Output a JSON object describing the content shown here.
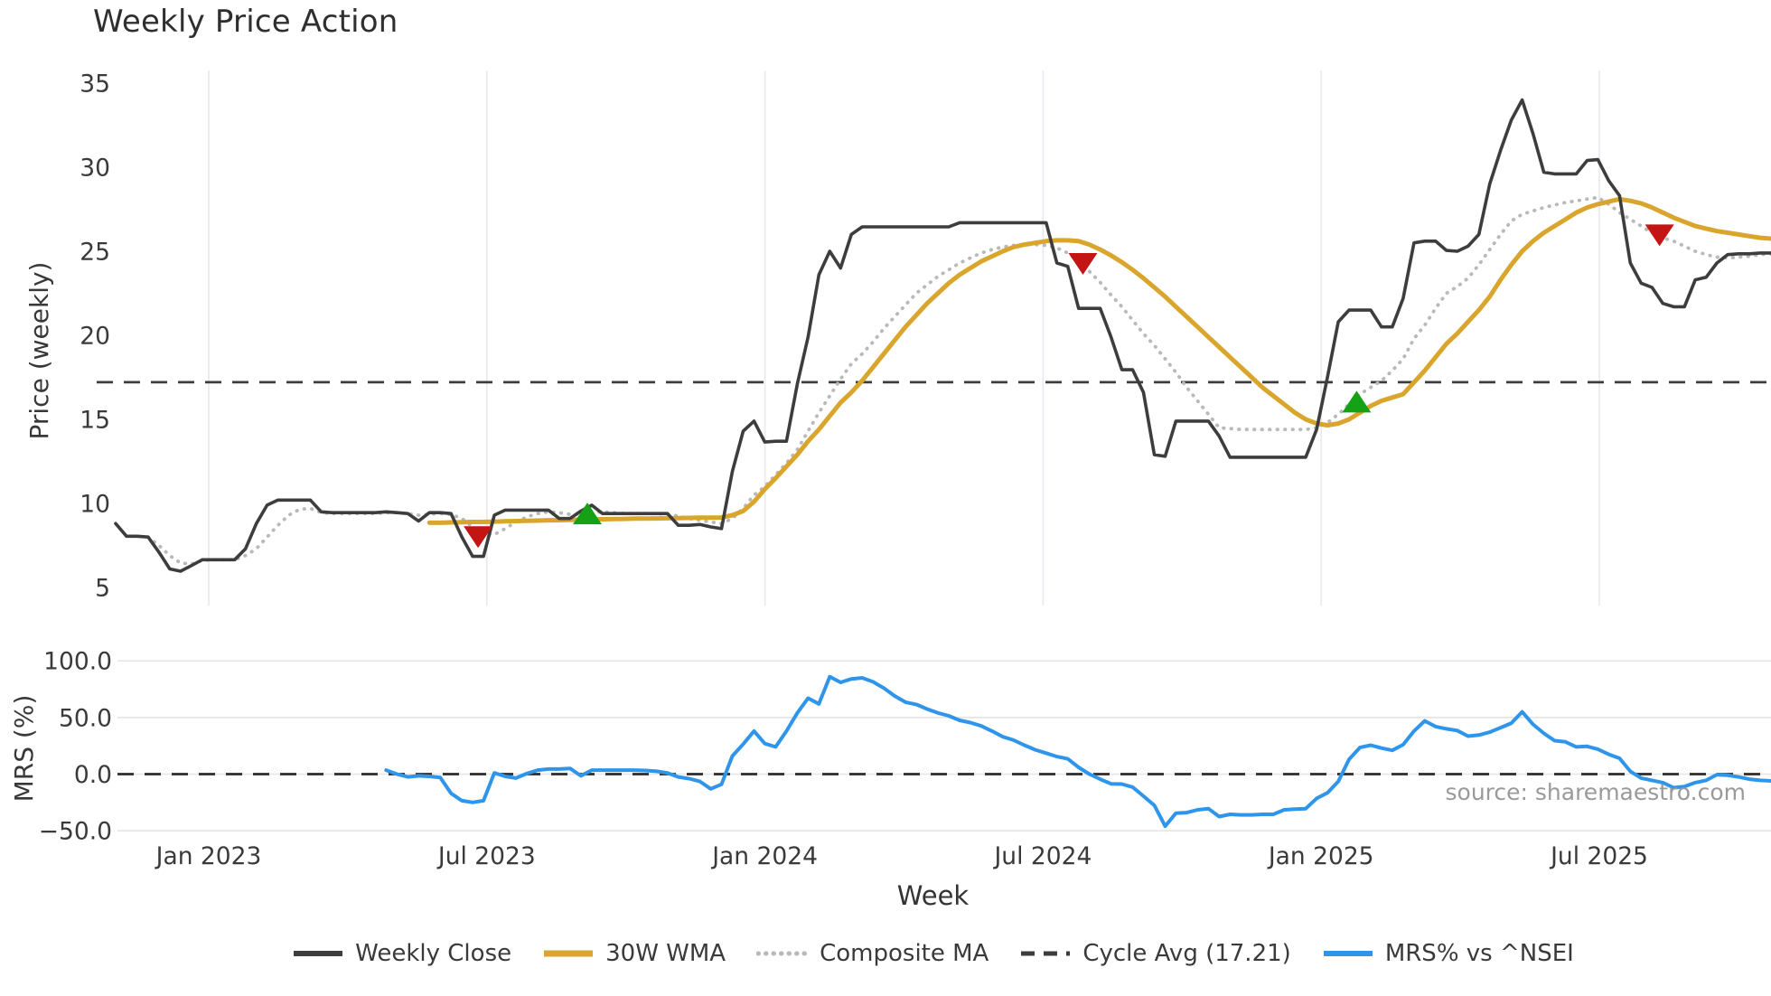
{
  "title": "Weekly Price Action",
  "source_note": "source: sharemaestro.com",
  "x_axis": {
    "label": "Week",
    "ticks": [
      "Jan 2023",
      "Jul 2023",
      "Jan 2024",
      "Jul 2024",
      "Jan 2025",
      "Jul 2025"
    ]
  },
  "colors": {
    "weekly_close": "#3d3d3d",
    "wma_30w": "#d9a52c",
    "composite_ma": "#b9b9b9",
    "cycle_avg": "#3c3c3c",
    "mrs": "#2e95ea",
    "buy_marker": "#15a115",
    "sell_marker": "#c41515",
    "vgrid": "#e9e9f1",
    "hgrid": "#e6e6e6",
    "tick_text": "#3a3a3a"
  },
  "legend": {
    "items": [
      {
        "label": "Weekly Close",
        "color": "#3d3d3d",
        "style": "solid",
        "width": 6
      },
      {
        "label": "30W WMA",
        "color": "#d9a52c",
        "style": "solid",
        "width": 7
      },
      {
        "label": "Composite MA",
        "color": "#b9b9b9",
        "style": "dotted",
        "width": 5
      },
      {
        "label": "Cycle Avg (17.21)",
        "color": "#3c3c3c",
        "style": "dashed",
        "width": 5
      },
      {
        "label": "MRS% vs ^NSEI",
        "color": "#2e95ea",
        "style": "solid",
        "width": 6
      }
    ]
  },
  "chart_data": [
    {
      "type": "line",
      "panel": "price",
      "title": "Weekly Price Action",
      "ylabel": "Price (weekly)",
      "yticks": [
        35,
        30,
        25,
        20,
        15,
        10,
        5
      ],
      "ylim": [
        4.2,
        35.8
      ],
      "grid": "vertical-only",
      "cycle_avg_value": 17.21,
      "series": [
        {
          "name": "Weekly Close",
          "style": "solid",
          "color": "#3d3d3d",
          "start_week": 0,
          "values": [
            8.8,
            8.05,
            8.05,
            8.0,
            7.1,
            6.1,
            5.97,
            6.3,
            6.65,
            6.65,
            6.65,
            6.65,
            7.3,
            8.8,
            9.9,
            10.2,
            10.2,
            10.2,
            10.2,
            9.5,
            9.45,
            9.45,
            9.45,
            9.45,
            9.45,
            9.5,
            9.45,
            9.4,
            8.95,
            9.45,
            9.45,
            9.4,
            8.0,
            6.85,
            6.85,
            9.3,
            9.6,
            9.6,
            9.6,
            9.6,
            9.6,
            9.1,
            9.1,
            9.55,
            9.9,
            9.4,
            9.4,
            9.4,
            9.4,
            9.4,
            9.4,
            9.4,
            8.7,
            8.7,
            8.75,
            8.6,
            8.5,
            11.9,
            14.3,
            14.9,
            13.65,
            13.7,
            13.7,
            17.1,
            19.9,
            23.6,
            25.0,
            24.0,
            26.0,
            26.45,
            26.45,
            26.45,
            26.45,
            26.45,
            26.45,
            26.45,
            26.45,
            26.45,
            26.7,
            26.7,
            26.7,
            26.7,
            26.7,
            26.7,
            26.7,
            26.7,
            26.7,
            24.3,
            24.1,
            21.6,
            21.6,
            21.6,
            19.9,
            17.95,
            17.95,
            16.6,
            12.9,
            12.8,
            14.9,
            14.9,
            14.9,
            14.9,
            14.0,
            12.75,
            12.75,
            12.75,
            12.75,
            12.75,
            12.75,
            12.75,
            12.75,
            14.4,
            17.5,
            20.8,
            21.5,
            21.5,
            21.5,
            20.5,
            20.5,
            22.2,
            25.5,
            25.6,
            25.6,
            25.05,
            25.0,
            25.3,
            26.0,
            29.0,
            31.0,
            32.8,
            34.0,
            32.0,
            29.7,
            29.6,
            29.6,
            29.6,
            30.4,
            30.45,
            29.2,
            28.3,
            24.3,
            23.1,
            22.85,
            21.9,
            21.7,
            21.7,
            23.3,
            23.45,
            24.3,
            24.8,
            24.85,
            24.85,
            24.9,
            24.9
          ]
        },
        {
          "name": "30W WMA",
          "style": "solid",
          "color": "#d9a52c",
          "start_week": 29,
          "values": [
            8.85,
            8.85,
            8.87,
            8.88,
            8.9,
            8.9,
            8.92,
            8.94,
            8.95,
            8.97,
            8.98,
            9.0,
            9.0,
            9.02,
            9.03,
            9.05,
            9.06,
            9.07,
            9.08,
            9.1,
            9.1,
            9.11,
            9.12,
            9.13,
            9.14,
            9.15,
            9.15,
            9.16,
            9.3,
            9.55,
            10.1,
            10.85,
            11.5,
            12.2,
            12.9,
            13.7,
            14.4,
            15.2,
            16.0,
            16.6,
            17.3,
            18.1,
            18.9,
            19.7,
            20.5,
            21.2,
            21.9,
            22.5,
            23.1,
            23.6,
            24.0,
            24.4,
            24.7,
            25.0,
            25.25,
            25.4,
            25.5,
            25.6,
            25.65,
            25.65,
            25.6,
            25.4,
            25.1,
            24.75,
            24.35,
            23.9,
            23.4,
            22.85,
            22.3,
            21.7,
            21.1,
            20.5,
            19.9,
            19.3,
            18.7,
            18.1,
            17.5,
            16.9,
            16.4,
            15.9,
            15.4,
            15.0,
            14.75,
            14.65,
            14.75,
            15.0,
            15.4,
            15.8,
            16.1,
            16.3,
            16.5,
            17.2,
            17.9,
            18.7,
            19.5,
            20.1,
            20.8,
            21.5,
            22.3,
            23.3,
            24.2,
            25.0,
            25.6,
            26.1,
            26.5,
            26.9,
            27.3,
            27.6,
            27.8,
            27.95,
            28.1,
            28.0,
            27.85,
            27.6,
            27.3,
            27.0,
            26.75,
            26.5,
            26.35,
            26.2,
            26.1,
            26.0,
            25.9,
            25.8,
            25.75
          ]
        },
        {
          "name": "Composite MA",
          "style": "dotted",
          "color": "#b9b9b9",
          "start_week": 3,
          "values": [
            8.0,
            7.5,
            6.9,
            6.45,
            6.4,
            6.6,
            6.65,
            6.65,
            6.65,
            6.9,
            7.3,
            8.0,
            8.7,
            9.3,
            9.65,
            9.7,
            9.45,
            9.4,
            9.4,
            9.4,
            9.4,
            9.4,
            9.45,
            9.45,
            9.4,
            9.3,
            9.35,
            9.4,
            9.35,
            9.1,
            8.6,
            8.2,
            8.15,
            8.5,
            8.9,
            9.2,
            9.4,
            9.5,
            9.45,
            9.35,
            9.35,
            9.45,
            9.5,
            9.45,
            9.4,
            9.4,
            9.4,
            9.4,
            9.35,
            9.25,
            9.1,
            9.0,
            8.9,
            8.8,
            9.1,
            9.7,
            10.5,
            11.0,
            11.7,
            12.4,
            13.2,
            14.3,
            15.4,
            16.4,
            17.4,
            18.3,
            18.9,
            19.6,
            20.4,
            21.1,
            21.8,
            22.5,
            23.0,
            23.5,
            23.9,
            24.3,
            24.6,
            24.9,
            25.1,
            25.25,
            25.35,
            25.4,
            25.4,
            25.35,
            25.2,
            24.9,
            24.4,
            23.8,
            23.15,
            22.4,
            21.7,
            20.9,
            20.1,
            19.4,
            18.6,
            17.8,
            16.9,
            16.1,
            15.3,
            14.5,
            14.45,
            14.4,
            14.4,
            14.4,
            14.4,
            14.4,
            14.4,
            14.4,
            14.5,
            14.8,
            15.3,
            15.9,
            16.5,
            16.9,
            17.3,
            17.9,
            18.6,
            19.8,
            20.6,
            21.6,
            22.5,
            22.9,
            23.4,
            24.2,
            25.1,
            26.0,
            26.8,
            27.2,
            27.4,
            27.6,
            27.75,
            27.9,
            28.0,
            28.1,
            28.2,
            27.8,
            27.3,
            26.9,
            26.5,
            26.1,
            25.8,
            25.6,
            25.3,
            25.0,
            24.8,
            24.65,
            24.6,
            24.65,
            24.7,
            24.8,
            24.85
          ]
        }
      ],
      "markers": {
        "buy": [
          {
            "week": 43.6,
            "price": 9.35
          },
          {
            "week": 114.7,
            "price": 16.0
          }
        ],
        "sell": [
          {
            "week": 33.5,
            "price": 8.05
          },
          {
            "week": 89.4,
            "price": 24.3
          },
          {
            "week": 142.7,
            "price": 26.0
          }
        ]
      }
    },
    {
      "type": "line",
      "panel": "mrs",
      "ylabel": "MRS (%)",
      "yticks": [
        100,
        50,
        0,
        -50
      ],
      "ylim": [
        -60,
        110
      ],
      "grid": "horizontal-only",
      "zero_line": 0,
      "series": [
        {
          "name": "MRS% vs ^NSEI",
          "style": "solid",
          "color": "#2e95ea",
          "start_week": 25,
          "values": [
            3.5,
            0,
            -2.5,
            -1.5,
            -2,
            -3,
            -17,
            -23.5,
            -25,
            -23.5,
            1,
            -2,
            -3.5,
            0.5,
            3.5,
            4.5,
            4.5,
            5,
            -1.5,
            3.5,
            3.5,
            3.5,
            3.5,
            3.5,
            3.2,
            2.5,
            1,
            -2.5,
            -4,
            -6.5,
            -13,
            -9,
            16,
            26.5,
            38,
            27,
            24,
            38,
            54,
            67,
            62,
            86,
            81,
            84,
            85,
            81.5,
            76,
            69,
            63.5,
            61.5,
            57.5,
            54,
            51.5,
            47.5,
            45.5,
            42.5,
            38,
            33,
            30,
            25.5,
            21.5,
            18.5,
            15.5,
            13.5,
            6,
            0,
            -4.5,
            -8.5,
            -8.8,
            -11.5,
            -19.5,
            -27.5,
            -46,
            -34.5,
            -34,
            -31.5,
            -30.5,
            -37.5,
            -35.5,
            -36,
            -36,
            -35.5,
            -35.5,
            -31.5,
            -31,
            -30.5,
            -21.5,
            -16.5,
            -6.5,
            13,
            23.5,
            25.5,
            23,
            21,
            26,
            38,
            47,
            42,
            40,
            38.5,
            33.5,
            34.5,
            37,
            41,
            45,
            55,
            44,
            36,
            29.5,
            28.5,
            24,
            24.5,
            22,
            17.5,
            14,
            2.5,
            -3.5,
            -5.5,
            -7.5,
            -12,
            -11,
            -7.5,
            -5.5,
            -0.5,
            -1,
            -2.5,
            -4.5,
            -5.5,
            -6
          ]
        }
      ]
    }
  ]
}
